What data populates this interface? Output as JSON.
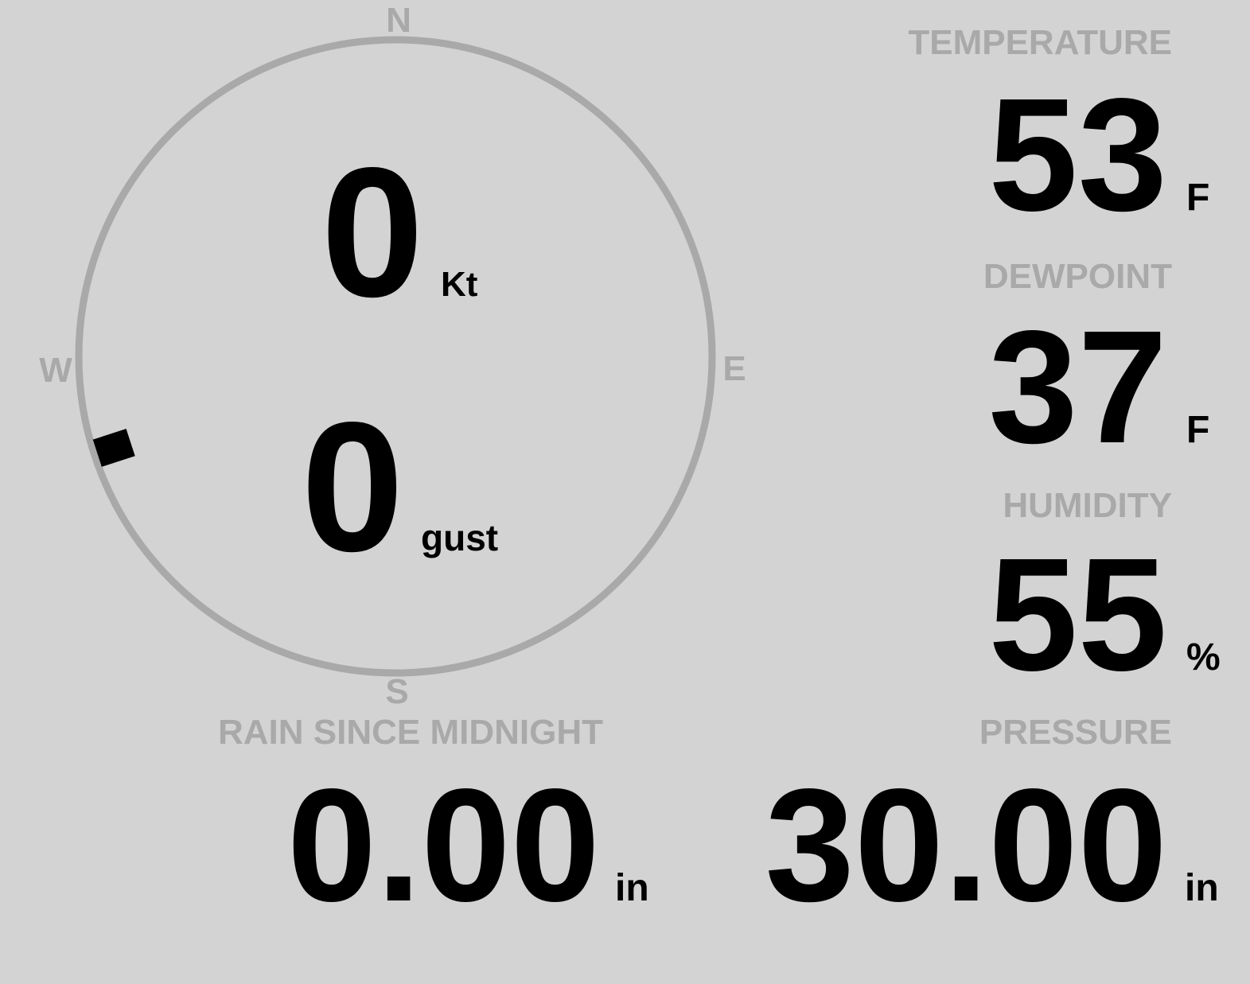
{
  "wind": {
    "compass": {
      "n": "N",
      "e": "E",
      "s": "S",
      "w": "W"
    },
    "direction_deg": 252,
    "speed": "0",
    "speed_unit": "Kt",
    "gust": "0",
    "gust_unit": "gust"
  },
  "temperature": {
    "label": "TEMPERATURE",
    "value": "53",
    "unit": "F"
  },
  "dewpoint": {
    "label": "DEWPOINT",
    "value": "37",
    "unit": "F"
  },
  "humidity": {
    "label": "HUMIDITY",
    "value": "55",
    "unit": "%"
  },
  "rain": {
    "label": "RAIN SINCE MIDNIGHT",
    "value": "0.00",
    "unit": "in"
  },
  "pressure": {
    "label": "PRESSURE",
    "value": "30.00",
    "unit": "in"
  },
  "colors": {
    "background": "#d3d3d3",
    "muted": "#a9a9a9",
    "value": "#000000"
  }
}
